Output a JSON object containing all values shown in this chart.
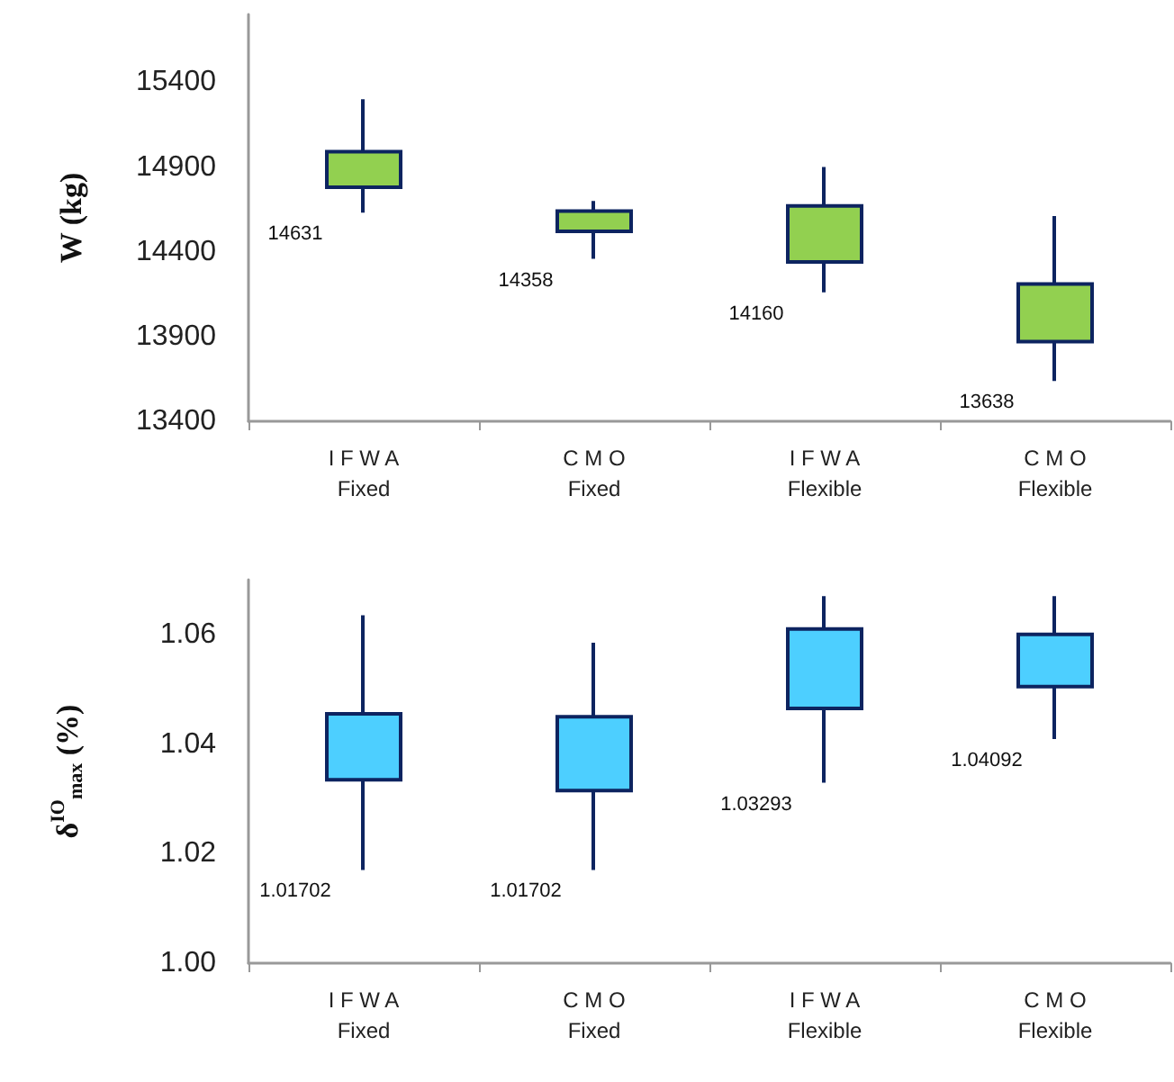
{
  "chart_data": [
    {
      "type": "candlestick",
      "ylabel": "W (kg)",
      "categories": [
        "I F W A\nFixed",
        "C M O\nFixed",
        "I F W A\nFlexible",
        "C M O\nFlexible"
      ],
      "ohlc": [
        [
          14780,
          15300,
          14631,
          14990
        ],
        [
          14520,
          14700,
          14358,
          14640
        ],
        [
          14340,
          14900,
          14160,
          14670
        ],
        [
          13870,
          14610,
          13638,
          14210
        ]
      ],
      "colors": [
        "#92d050",
        "#92d050",
        "#92d050",
        "#92d050"
      ],
      "ylim": [
        13400,
        15800
      ],
      "yticks": [
        13400,
        13900,
        14400,
        14900,
        15400
      ],
      "grid": false,
      "annotations": [
        {
          "text": "14631",
          "x": "I F W A\nFixed",
          "y": 14631
        },
        {
          "text": "14358",
          "x": "C M O\nFixed",
          "y": 14358
        },
        {
          "text": "14160",
          "x": "I F W A\nFlexible",
          "y": 14160
        },
        {
          "text": "13638",
          "x": "C M O\nFlexible",
          "y": 13638
        }
      ]
    },
    {
      "type": "candlestick",
      "ylabel": "δ$^{IO}$$_{max}$ (%)",
      "categories": [
        "I F W A\nFixed",
        "C M O\nFixed",
        "I F W A\nFlexible",
        "C M O\nFlexible"
      ],
      "ohlc": [
        [
          1.0335,
          1.0635,
          1.01702,
          1.0455
        ],
        [
          1.0315,
          1.0585,
          1.01702,
          1.045
        ],
        [
          1.0465,
          1.067,
          1.03293,
          1.061
        ],
        [
          1.0505,
          1.067,
          1.04092,
          1.06
        ]
      ],
      "colors": [
        "#4dcfff",
        "#4dcfff",
        "#4dcfff",
        "#4dcfff"
      ],
      "ylim": [
        1.0,
        1.07
      ],
      "yticks": [
        {
          "value": 1.0,
          "label": "1.00"
        },
        {
          "value": 1.02,
          "label": "1.02"
        },
        {
          "value": 1.04,
          "label": "1.04"
        },
        {
          "value": 1.06,
          "label": "1.06"
        }
      ],
      "grid": false,
      "annotations": [
        {
          "text": "1.01702",
          "x": "I F W A\nFixed",
          "y": 1.01702
        },
        {
          "text": "1.01702",
          "x": "C M O\nFixed",
          "y": 1.01702
        },
        {
          "text": "1.03293",
          "x": "I F W A\nFlexible",
          "y": 1.03293
        },
        {
          "text": "1.04092",
          "x": "C M O\nFlexible",
          "y": 1.04092
        }
      ]
    }
  ]
}
